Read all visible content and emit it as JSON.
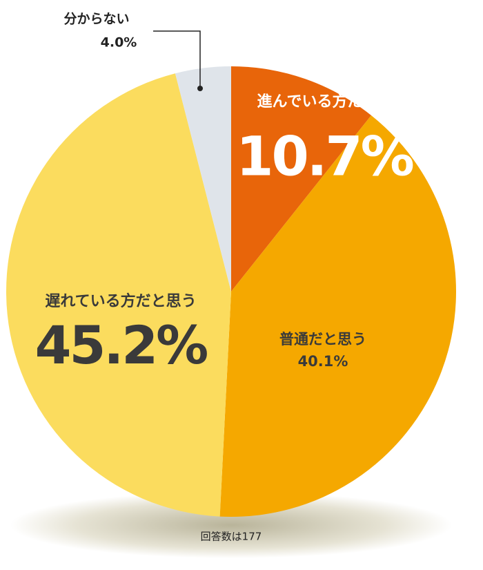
{
  "chart_data": {
    "type": "pie",
    "categories": [
      "進んでいる方だと思う",
      "普通だと思う",
      "遅れている方だと思う",
      "分からない"
    ],
    "values": [
      10.7,
      40.1,
      45.2,
      4.0
    ],
    "value_labels": [
      "10.7%",
      "40.1%",
      "45.2%",
      "4.0%"
    ],
    "colors": [
      "#e8650a",
      "#f5a800",
      "#fbdc5e",
      "#dfe4ea"
    ],
    "note": "回答数は177"
  }
}
